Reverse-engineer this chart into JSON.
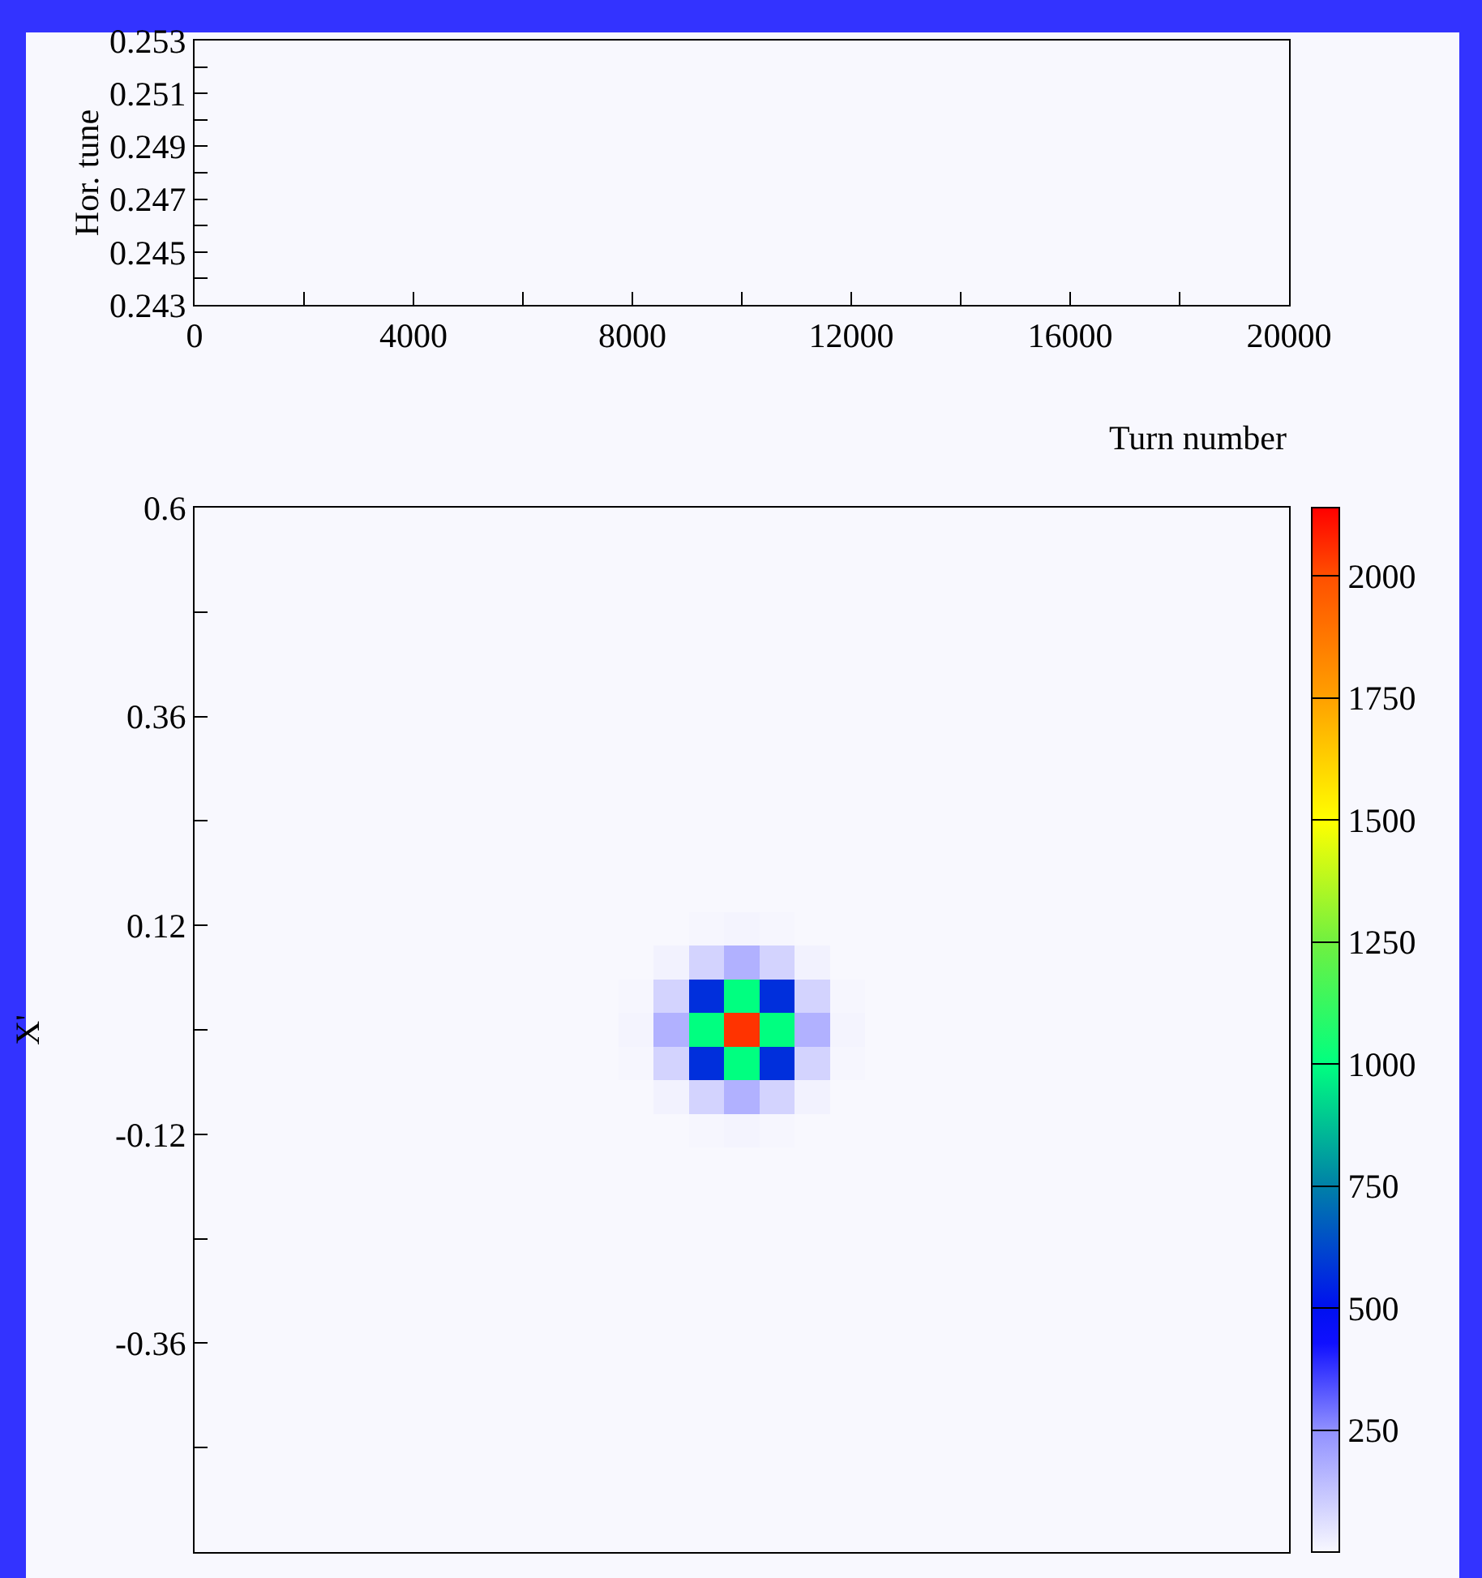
{
  "chart_data": [
    {
      "type": "line",
      "xlabel": "Turn number",
      "ylabel": "Hor. tune",
      "xlim": [
        0,
        20000
      ],
      "xticks": [
        0,
        {
          "value": 2000,
          "label": null
        },
        4000,
        {
          "value": 6000,
          "label": null
        },
        8000,
        {
          "value": 10000,
          "label": null
        },
        12000,
        {
          "value": 14000,
          "label": null
        },
        16000,
        {
          "value": 18000,
          "label": null
        },
        20000
      ],
      "ylim": [
        0.243,
        0.253
      ],
      "yticks": [
        0.243,
        {
          "value": 0.244,
          "label": null
        },
        0.245,
        {
          "value": 0.246,
          "label": null
        },
        0.247,
        {
          "value": 0.248,
          "label": null
        },
        0.249,
        {
          "value": 0.25,
          "label": null
        },
        0.251,
        {
          "value": 0.252,
          "label": null
        },
        0.253
      ]
    },
    {
      "type": "heatmap",
      "ylabel": "X'",
      "tick_labels": "y",
      "categories": [
        null,
        null,
        null,
        null,
        null,
        null,
        null,
        null,
        null,
        null,
        null,
        null,
        null,
        null,
        null,
        null,
        null,
        null,
        null,
        null,
        null,
        null,
        null,
        null,
        null,
        null,
        null,
        null,
        null,
        null,
        null
      ],
      "ylim": [
        -0.6,
        0.6
      ],
      "yticks": [
        {
          "value": -0.48,
          "label": null
        },
        -0.36,
        {
          "value": -0.24,
          "label": null
        },
        -0.12,
        {
          "value": 0,
          "label": null
        },
        0.12,
        {
          "value": 0.24,
          "label": null
        },
        0.36,
        {
          "value": 0.48,
          "label": null
        },
        0.6
      ],
      "clim": [
        0,
        2140
      ],
      "cticks": [
        250,
        500,
        750,
        1000,
        1250,
        1500,
        1750,
        2000
      ],
      "cells": [
        [
          0,
          0,
          0,
          0,
          0,
          0,
          0,
          0,
          0,
          0,
          0,
          0,
          0,
          0,
          0,
          0,
          0,
          0,
          0,
          0,
          0,
          0,
          0,
          0,
          0,
          0,
          0,
          0,
          0,
          0,
          0
        ],
        [
          0,
          0,
          0,
          0,
          0,
          0,
          0,
          0,
          0,
          0,
          0,
          0,
          0,
          0,
          0,
          0,
          0,
          0,
          0,
          0,
          0,
          0,
          0,
          0,
          0,
          0,
          0,
          0,
          0,
          0,
          0
        ],
        [
          0,
          0,
          0,
          0,
          0,
          0,
          0,
          0,
          0,
          0,
          0,
          0,
          0,
          0,
          0,
          0,
          0,
          0,
          0,
          0,
          0,
          0,
          0,
          0,
          0,
          0,
          0,
          0,
          0,
          0,
          0
        ],
        [
          0,
          0,
          0,
          0,
          0,
          0,
          0,
          0,
          0,
          0,
          0,
          0,
          0,
          0,
          0,
          0,
          0,
          0,
          0,
          0,
          0,
          0,
          0,
          0,
          0,
          0,
          0,
          0,
          0,
          0,
          0
        ],
        [
          0,
          0,
          0,
          0,
          0,
          0,
          0,
          0,
          0,
          0,
          0,
          0,
          0,
          0,
          0,
          0,
          0,
          0,
          0,
          0,
          0,
          0,
          0,
          0,
          0,
          0,
          0,
          0,
          0,
          0,
          0
        ],
        [
          0,
          0,
          0,
          0,
          0,
          0,
          0,
          0,
          0,
          0,
          0,
          0,
          0,
          0,
          0,
          0,
          0,
          0,
          0,
          0,
          0,
          0,
          0,
          0,
          0,
          0,
          0,
          0,
          0,
          0,
          0
        ],
        [
          0,
          0,
          0,
          0,
          0,
          0,
          0,
          0,
          0,
          0,
          0,
          0,
          0,
          0,
          0,
          0,
          0,
          0,
          0,
          0,
          0,
          0,
          0,
          0,
          0,
          0,
          0,
          0,
          0,
          0,
          0
        ],
        [
          0,
          0,
          0,
          0,
          0,
          0,
          0,
          0,
          0,
          0,
          0,
          0,
          0,
          0,
          0,
          0,
          0,
          0,
          0,
          0,
          0,
          0,
          0,
          0,
          0,
          0,
          0,
          0,
          0,
          0,
          0
        ],
        [
          0,
          0,
          0,
          0,
          0,
          0,
          0,
          0,
          0,
          0,
          0,
          0,
          0,
          0,
          0,
          0,
          0,
          0,
          0,
          0,
          0,
          0,
          0,
          0,
          0,
          0,
          0,
          0,
          0,
          0,
          0
        ],
        [
          0,
          0,
          0,
          0,
          0,
          0,
          0,
          0,
          0,
          0,
          0,
          0,
          0,
          0,
          0,
          0,
          0,
          0,
          0,
          0,
          0,
          0,
          0,
          0,
          0,
          0,
          0,
          0,
          0,
          0,
          0
        ],
        [
          0,
          0,
          0,
          0,
          0,
          0,
          0,
          0,
          0,
          0,
          0,
          0,
          0,
          0,
          0,
          0,
          0,
          0,
          0,
          0,
          0,
          0,
          0,
          0,
          0,
          0,
          0,
          0,
          0,
          0,
          0
        ],
        [
          0,
          0,
          0,
          0,
          0,
          0,
          0,
          0,
          0,
          0,
          0,
          0,
          0,
          0,
          0,
          0,
          0,
          0,
          0,
          0,
          0,
          0,
          0,
          0,
          0,
          0,
          0,
          0,
          0,
          0,
          0
        ],
        [
          0,
          0,
          0,
          0,
          0,
          0,
          0,
          0,
          0,
          0,
          0,
          0,
          0,
          0,
          5,
          10,
          5,
          0,
          0,
          0,
          0,
          0,
          0,
          0,
          0,
          0,
          0,
          0,
          0,
          0,
          0
        ],
        [
          0,
          0,
          0,
          0,
          0,
          0,
          0,
          0,
          0,
          0,
          0,
          0,
          0,
          15,
          90,
          170,
          90,
          15,
          0,
          0,
          0,
          0,
          0,
          0,
          0,
          0,
          0,
          0,
          0,
          0,
          0
        ],
        [
          0,
          0,
          0,
          0,
          0,
          0,
          0,
          0,
          0,
          0,
          0,
          0,
          5,
          90,
          570,
          1000,
          570,
          90,
          5,
          0,
          0,
          0,
          0,
          0,
          0,
          0,
          0,
          0,
          0,
          0,
          0
        ],
        [
          0,
          0,
          0,
          0,
          0,
          0,
          0,
          0,
          0,
          0,
          0,
          0,
          10,
          170,
          1000,
          2050,
          1000,
          170,
          10,
          0,
          0,
          0,
          0,
          0,
          0,
          0,
          0,
          0,
          0,
          0,
          0
        ],
        [
          0,
          0,
          0,
          0,
          0,
          0,
          0,
          0,
          0,
          0,
          0,
          0,
          5,
          90,
          570,
          1000,
          570,
          90,
          5,
          0,
          0,
          0,
          0,
          0,
          0,
          0,
          0,
          0,
          0,
          0,
          0
        ],
        [
          0,
          0,
          0,
          0,
          0,
          0,
          0,
          0,
          0,
          0,
          0,
          0,
          0,
          15,
          90,
          170,
          90,
          15,
          0,
          0,
          0,
          0,
          0,
          0,
          0,
          0,
          0,
          0,
          0,
          0,
          0
        ],
        [
          0,
          0,
          0,
          0,
          0,
          0,
          0,
          0,
          0,
          0,
          0,
          0,
          0,
          0,
          5,
          10,
          5,
          0,
          0,
          0,
          0,
          0,
          0,
          0,
          0,
          0,
          0,
          0,
          0,
          0,
          0
        ],
        [
          0,
          0,
          0,
          0,
          0,
          0,
          0,
          0,
          0,
          0,
          0,
          0,
          0,
          0,
          0,
          0,
          0,
          0,
          0,
          0,
          0,
          0,
          0,
          0,
          0,
          0,
          0,
          0,
          0,
          0,
          0
        ],
        [
          0,
          0,
          0,
          0,
          0,
          0,
          0,
          0,
          0,
          0,
          0,
          0,
          0,
          0,
          0,
          0,
          0,
          0,
          0,
          0,
          0,
          0,
          0,
          0,
          0,
          0,
          0,
          0,
          0,
          0,
          0
        ],
        [
          0,
          0,
          0,
          0,
          0,
          0,
          0,
          0,
          0,
          0,
          0,
          0,
          0,
          0,
          0,
          0,
          0,
          0,
          0,
          0,
          0,
          0,
          0,
          0,
          0,
          0,
          0,
          0,
          0,
          0,
          0
        ],
        [
          0,
          0,
          0,
          0,
          0,
          0,
          0,
          0,
          0,
          0,
          0,
          0,
          0,
          0,
          0,
          0,
          0,
          0,
          0,
          0,
          0,
          0,
          0,
          0,
          0,
          0,
          0,
          0,
          0,
          0,
          0
        ],
        [
          0,
          0,
          0,
          0,
          0,
          0,
          0,
          0,
          0,
          0,
          0,
          0,
          0,
          0,
          0,
          0,
          0,
          0,
          0,
          0,
          0,
          0,
          0,
          0,
          0,
          0,
          0,
          0,
          0,
          0,
          0
        ],
        [
          0,
          0,
          0,
          0,
          0,
          0,
          0,
          0,
          0,
          0,
          0,
          0,
          0,
          0,
          0,
          0,
          0,
          0,
          0,
          0,
          0,
          0,
          0,
          0,
          0,
          0,
          0,
          0,
          0,
          0,
          0
        ],
        [
          0,
          0,
          0,
          0,
          0,
          0,
          0,
          0,
          0,
          0,
          0,
          0,
          0,
          0,
          0,
          0,
          0,
          0,
          0,
          0,
          0,
          0,
          0,
          0,
          0,
          0,
          0,
          0,
          0,
          0,
          0
        ],
        [
          0,
          0,
          0,
          0,
          0,
          0,
          0,
          0,
          0,
          0,
          0,
          0,
          0,
          0,
          0,
          0,
          0,
          0,
          0,
          0,
          0,
          0,
          0,
          0,
          0,
          0,
          0,
          0,
          0,
          0,
          0
        ],
        [
          0,
          0,
          0,
          0,
          0,
          0,
          0,
          0,
          0,
          0,
          0,
          0,
          0,
          0,
          0,
          0,
          0,
          0,
          0,
          0,
          0,
          0,
          0,
          0,
          0,
          0,
          0,
          0,
          0,
          0,
          0
        ],
        [
          0,
          0,
          0,
          0,
          0,
          0,
          0,
          0,
          0,
          0,
          0,
          0,
          0,
          0,
          0,
          0,
          0,
          0,
          0,
          0,
          0,
          0,
          0,
          0,
          0,
          0,
          0,
          0,
          0,
          0,
          0
        ],
        [
          0,
          0,
          0,
          0,
          0,
          0,
          0,
          0,
          0,
          0,
          0,
          0,
          0,
          0,
          0,
          0,
          0,
          0,
          0,
          0,
          0,
          0,
          0,
          0,
          0,
          0,
          0,
          0,
          0,
          0,
          0
        ],
        [
          0,
          0,
          0,
          0,
          0,
          0,
          0,
          0,
          0,
          0,
          0,
          0,
          0,
          0,
          0,
          0,
          0,
          0,
          0,
          0,
          0,
          0,
          0,
          0,
          0,
          0,
          0,
          0,
          0,
          0,
          0
        ]
      ]
    }
  ]
}
